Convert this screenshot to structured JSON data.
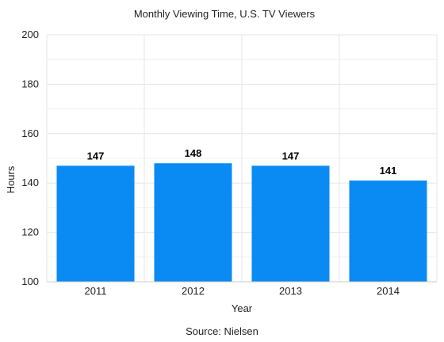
{
  "chart_data": {
    "type": "bar",
    "title": "Monthly Viewing Time, U.S. TV Viewers",
    "xlabel": "Year",
    "ylabel": "Hours",
    "categories": [
      "2011",
      "2012",
      "2013",
      "2014"
    ],
    "values": [
      147,
      148,
      147,
      141
    ],
    "data_labels": [
      "147",
      "148",
      "147",
      "141"
    ],
    "ylim": [
      100,
      200
    ],
    "yticks": [
      "100",
      "120",
      "140",
      "160",
      "180",
      "200"
    ],
    "grid": true,
    "bar_color": "#0a8af3",
    "grid_color": "#e6e6e6",
    "source": "Source: Nielsen"
  }
}
